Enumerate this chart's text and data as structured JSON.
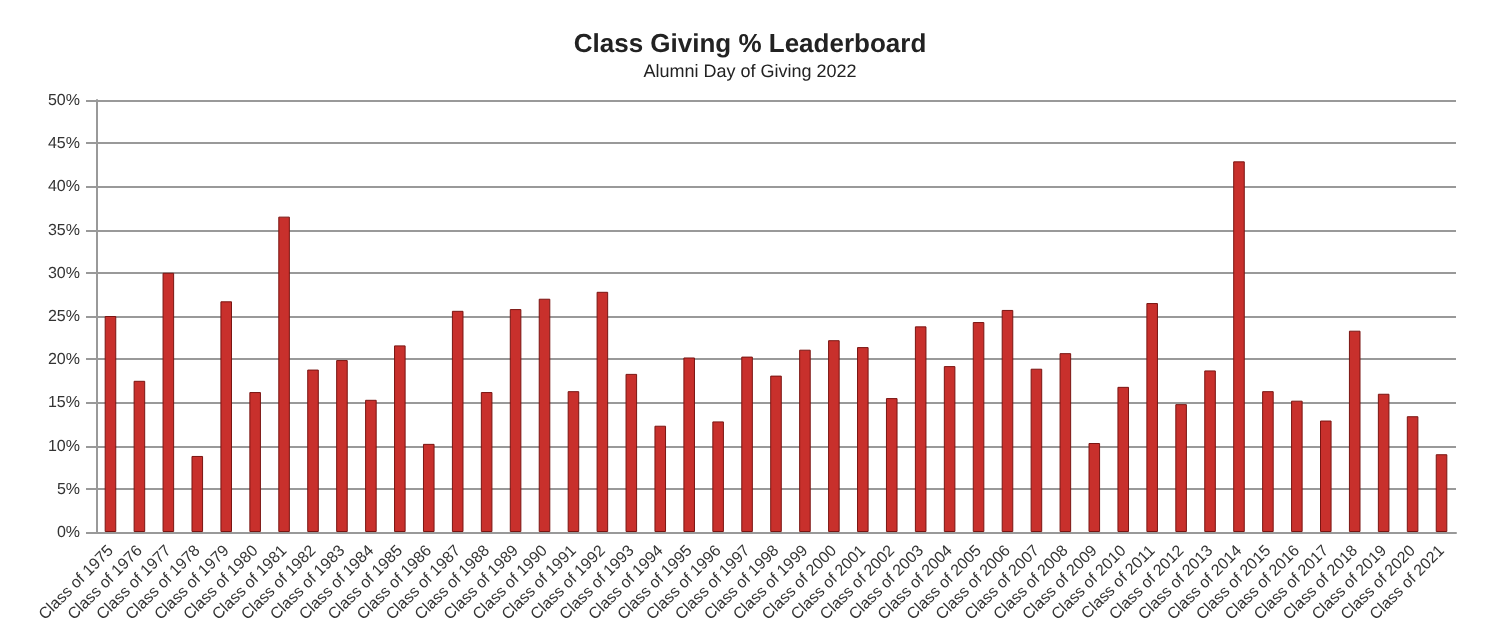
{
  "chart_data": {
    "type": "bar",
    "title": "Class Giving % Leaderboard",
    "subtitle": "Alumni Day of Giving 2022",
    "categories": [
      "Class of 1975",
      "Class of 1976",
      "Class of 1977",
      "Class of 1978",
      "Class of 1979",
      "Class of 1980",
      "Class of 1981",
      "Class of 1982",
      "Class of 1983",
      "Class of 1984",
      "Class of 1985",
      "Class of 1986",
      "Class of 1987",
      "Class of 1988",
      "Class of 1989",
      "Class of 1990",
      "Class of 1991",
      "Class of 1992",
      "Class of 1993",
      "Class of 1994",
      "Class of 1995",
      "Class of 1996",
      "Class of 1997",
      "Class of 1998",
      "Class of 1999",
      "Class of 2000",
      "Class of 2001",
      "Class of 2002",
      "Class of 2003",
      "Class of 2004",
      "Class of 2005",
      "Class of 2006",
      "Class of 2007",
      "Class of 2008",
      "Class of 2009",
      "Class of 2010",
      "Class of 2011",
      "Class of 2012",
      "Class of 2013",
      "Class of 2014",
      "Class of 2015",
      "Class of 2016",
      "Class of 2017",
      "Class of 2018",
      "Class of 2019",
      "Class of 2020",
      "Class of 2021"
    ],
    "values": [
      25,
      17.5,
      30,
      8.8,
      26.7,
      16.2,
      36.5,
      18.8,
      19.9,
      15.3,
      21.6,
      10.2,
      25.6,
      16.2,
      25.8,
      27,
      16.3,
      27.8,
      18.3,
      12.3,
      20.2,
      12.8,
      20.3,
      18.1,
      21.1,
      22.2,
      21.4,
      15.5,
      23.8,
      19.2,
      24.3,
      25.7,
      18.9,
      20.7,
      10.3,
      16.8,
      26.5,
      14.8,
      18.7,
      42.9,
      16.3,
      15.2,
      12.9,
      23.3,
      16,
      13.4,
      9
    ],
    "color": "#c8302c",
    "ylim": [
      0,
      50
    ],
    "yticks": [
      {
        "value": 0,
        "label": "0%"
      },
      {
        "value": 5,
        "label": "5%"
      },
      {
        "value": 10,
        "label": "10%"
      },
      {
        "value": 15,
        "label": "15%"
      },
      {
        "value": 20,
        "label": "20%"
      },
      {
        "value": 25,
        "label": "25%"
      },
      {
        "value": 30,
        "label": "30%"
      },
      {
        "value": 35,
        "label": "35%"
      },
      {
        "value": 40,
        "label": "40%"
      },
      {
        "value": 45,
        "label": "45%"
      },
      {
        "value": 50,
        "label": "50%"
      }
    ],
    "grid": "y"
  }
}
